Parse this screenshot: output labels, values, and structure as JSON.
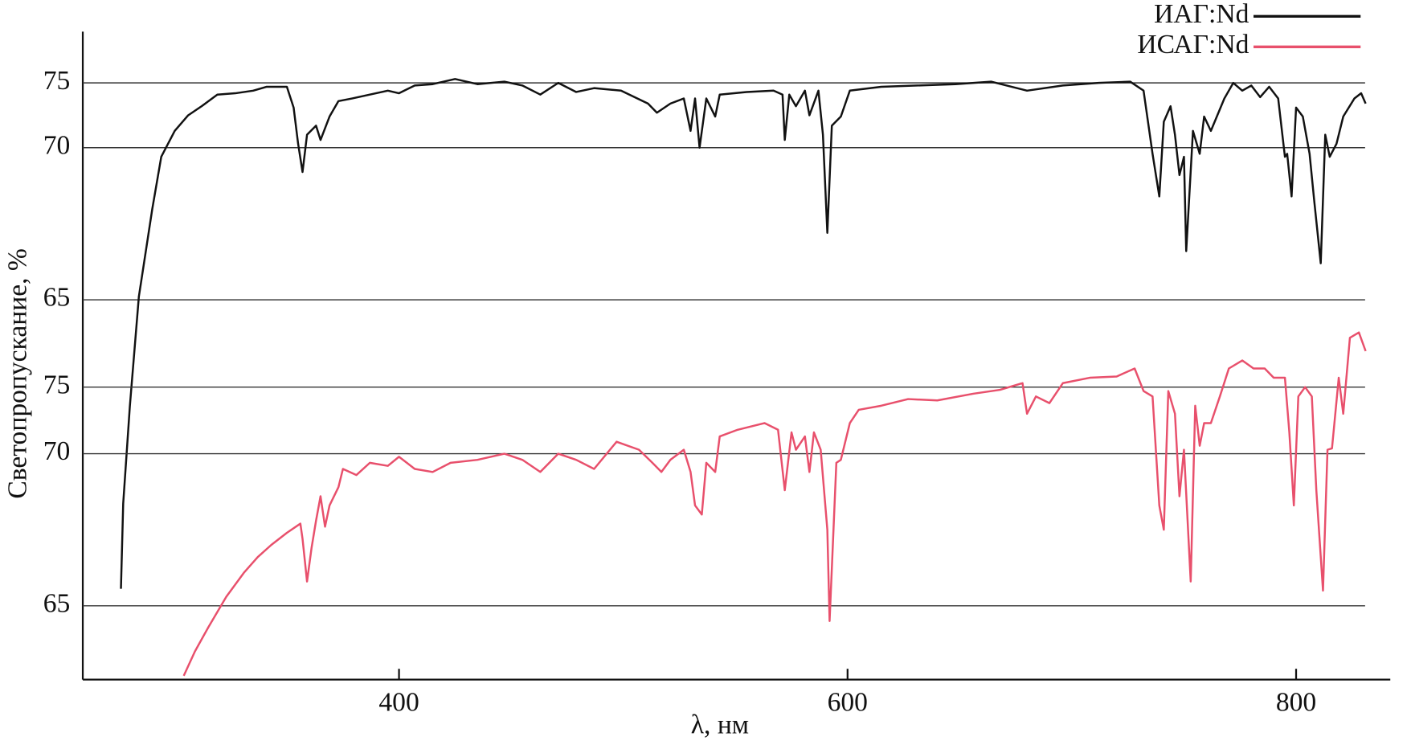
{
  "chart_data": [
    {
      "type": "line",
      "xlabel": "λ, нм",
      "ylabel": "Светопропускание, %",
      "xlim": [
        259,
        842
      ],
      "xticks": [
        400,
        600,
        800
      ],
      "ylim": [
        52.5,
        79
      ],
      "yticks": [
        65,
        70,
        75
      ],
      "grid": true,
      "legend": "top-right",
      "x": [
        276,
        277,
        280,
        284,
        290,
        294,
        300,
        306,
        312,
        319,
        327,
        335,
        341,
        350,
        353,
        355,
        357,
        359,
        363,
        365,
        369,
        373,
        379,
        387,
        395,
        400,
        407,
        415,
        425,
        435,
        447,
        455,
        463,
        471,
        479,
        487,
        499,
        511,
        515,
        521,
        527,
        530,
        532,
        534,
        537,
        541,
        543,
        555,
        567,
        571,
        572,
        574,
        577,
        581,
        583,
        587,
        589,
        591,
        593,
        597,
        601,
        615,
        631,
        648,
        664,
        680,
        696,
        712,
        726,
        732,
        736,
        739,
        741,
        744,
        746,
        748,
        750,
        751,
        754,
        757,
        759,
        762,
        768,
        772,
        776,
        780,
        784,
        788,
        792,
        795,
        796,
        798,
        800,
        803,
        806,
        808,
        811,
        813,
        815,
        818,
        821,
        826,
        829,
        831
      ],
      "series": [
        {
          "name": "ИАГ:Nd",
          "color": "#111111",
          "values": [
            55.5,
            58.3,
            61.5,
            65.1,
            68.0,
            69.7,
            71.3,
            72.5,
            73.2,
            74.1,
            74.2,
            74.4,
            74.7,
            74.7,
            73.1,
            70.3,
            69.2,
            71.0,
            71.7,
            70.6,
            72.4,
            73.6,
            73.8,
            74.1,
            74.4,
            74.2,
            74.8,
            74.9,
            75.3,
            74.9,
            75.1,
            74.8,
            74.1,
            75.0,
            74.3,
            74.6,
            74.4,
            73.4,
            72.7,
            73.4,
            73.8,
            71.3,
            73.8,
            70.0,
            73.8,
            72.4,
            74.1,
            74.3,
            74.4,
            74.1,
            70.6,
            74.1,
            73.2,
            74.4,
            72.5,
            74.4,
            71.0,
            67.2,
            71.7,
            72.4,
            74.4,
            74.7,
            74.8,
            74.9,
            75.1,
            74.4,
            74.8,
            75.0,
            75.1,
            74.4,
            69.8,
            68.4,
            72.0,
            73.2,
            71.0,
            69.1,
            69.7,
            66.6,
            71.3,
            69.8,
            72.4,
            71.3,
            73.8,
            75.0,
            74.4,
            74.8,
            73.9,
            74.7,
            73.8,
            69.7,
            69.8,
            68.4,
            73.1,
            72.4,
            69.8,
            68.3,
            66.2,
            71.0,
            69.7,
            70.3,
            72.4,
            73.8,
            74.2,
            73.4
          ]
        }
      ]
    },
    {
      "type": "line",
      "ylim": [
        62.6,
        101.7
      ],
      "yticks": [
        65,
        70,
        75
      ],
      "grid": true,
      "x": [
        304,
        309,
        315,
        323,
        331,
        337,
        343,
        350,
        356,
        357,
        359,
        361,
        363,
        365,
        367,
        369,
        373,
        375,
        381,
        387,
        395,
        400,
        407,
        415,
        423,
        435,
        447,
        455,
        463,
        471,
        479,
        487,
        497,
        507,
        513,
        517,
        521,
        527,
        530,
        532,
        535,
        537,
        541,
        543,
        551,
        563,
        569,
        572,
        575,
        577,
        581,
        583,
        585,
        588,
        591,
        592,
        595,
        597,
        601,
        605,
        615,
        627,
        640,
        656,
        668,
        678,
        680,
        684,
        690,
        696,
        708,
        720,
        728,
        732,
        736,
        739,
        741,
        743,
        746,
        748,
        750,
        753,
        755,
        757,
        759,
        762,
        766,
        770,
        776,
        781,
        786,
        790,
        795,
        797,
        799,
        801,
        804,
        807,
        809,
        812,
        814,
        816,
        819,
        821,
        824,
        828,
        831
      ],
      "series": [
        {
          "name": "ИСАГ:Nd",
          "color": "#e8506c",
          "values": [
            62.7,
            63.5,
            64.3,
            65.3,
            66.1,
            66.6,
            67.0,
            67.4,
            67.7,
            67.2,
            65.8,
            66.9,
            67.8,
            68.6,
            67.6,
            68.3,
            68.9,
            69.5,
            69.3,
            69.7,
            69.6,
            69.9,
            69.5,
            69.4,
            69.7,
            69.8,
            70.0,
            69.8,
            69.4,
            70.0,
            69.8,
            69.5,
            70.9,
            70.3,
            69.7,
            69.4,
            69.8,
            70.3,
            69.4,
            68.3,
            68.0,
            69.7,
            69.4,
            71.3,
            71.8,
            72.3,
            71.8,
            68.8,
            71.6,
            70.3,
            71.3,
            69.4,
            71.6,
            70.3,
            67.5,
            64.5,
            69.7,
            69.8,
            72.3,
            73.3,
            73.6,
            74.1,
            74.0,
            74.5,
            74.8,
            75.3,
            73.0,
            74.3,
            73.8,
            75.3,
            75.7,
            75.8,
            76.4,
            74.7,
            74.3,
            68.3,
            67.5,
            74.7,
            73.0,
            68.6,
            70.3,
            65.8,
            73.6,
            70.6,
            72.3,
            72.3,
            74.3,
            76.4,
            77.0,
            76.4,
            76.4,
            75.7,
            75.7,
            71.6,
            68.3,
            74.3,
            75.0,
            74.3,
            68.8,
            65.5,
            70.3,
            70.4,
            75.7,
            73.0,
            78.7,
            79.1,
            77.7
          ]
        }
      ]
    }
  ]
}
